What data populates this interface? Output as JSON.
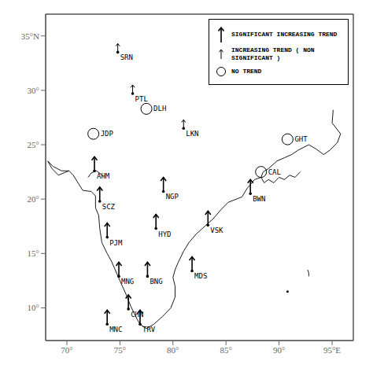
{
  "chart_data": {
    "type": "scatter",
    "xlim": [
      68,
      97
    ],
    "ylim": [
      7,
      37
    ],
    "xticks": [
      {
        "value": 70,
        "label": "70°"
      },
      {
        "value": 75,
        "label": "75°"
      },
      {
        "value": 80,
        "label": "80°"
      },
      {
        "value": 85,
        "label": "85°"
      },
      {
        "value": 90,
        "label": "90°"
      },
      {
        "value": 95,
        "label": "95°E"
      }
    ],
    "yticks": [
      {
        "value": 10,
        "label": "10°"
      },
      {
        "value": 15,
        "label": "15°"
      },
      {
        "value": 20,
        "label": "20°"
      },
      {
        "value": 25,
        "label": "25°"
      },
      {
        "value": 30,
        "label": "30°"
      },
      {
        "value": 35,
        "label": "35°N"
      }
    ],
    "grid": false,
    "legend": "upper right",
    "series": [
      {
        "type": "line",
        "color": "#000000",
        "marker": "none",
        "line_style": "solid",
        "x": [
          68.2,
          68.6,
          69.2,
          70.2,
          70.6,
          71.5,
          72.3,
          72.7,
          72.7,
          73.0,
          73.1,
          73.3,
          73.8,
          74.2,
          75.0,
          75.6,
          76.0,
          76.6,
          76.9,
          77.5,
          78.2,
          79.0,
          79.8,
          80.2,
          80.2,
          80.0,
          80.2,
          80.5,
          81.0,
          81.5,
          82.2,
          83.0,
          83.8,
          84.5,
          85.2,
          86.5,
          87.0,
          87.7,
          88.3,
          88.5,
          89.0,
          89.8,
          90.5,
          91.2,
          91.8,
          92.2,
          92.8,
          93.5,
          94.2,
          94.8,
          95.5,
          95.8,
          95.0,
          95.1
        ],
        "values": [
          23.5,
          22.8,
          22.2,
          22.6,
          22.2,
          20.8,
          20.7,
          20.3,
          19.2,
          18.5,
          17.3,
          16.0,
          15.0,
          14.3,
          12.5,
          11.2,
          10.2,
          9.0,
          8.5,
          8.1,
          8.5,
          9.2,
          10.0,
          11.0,
          12.0,
          12.8,
          13.5,
          14.2,
          15.2,
          16.0,
          16.8,
          17.5,
          18.2,
          19.0,
          19.7,
          20.2,
          21.0,
          21.8,
          22.0,
          22.5,
          22.8,
          23.5,
          23.8,
          24.1,
          24.5,
          24.7,
          25.0,
          24.6,
          24.1,
          24.5,
          25.2,
          26.0,
          27.0,
          28.2
        ]
      },
      {
        "type": "line",
        "color": "#000000",
        "marker": "none",
        "line_style": "solid",
        "x": [
          68.2,
          68.7,
          69.5,
          70.2
        ],
        "values": [
          23.5,
          23.0,
          22.6,
          22.6
        ]
      },
      {
        "type": "line",
        "color": "#000000",
        "marker": "none",
        "line_style": "solid",
        "x": [
          72.0,
          72.3,
          72.8,
          73.2,
          73.5
        ],
        "values": [
          22.0,
          22.4,
          22.6,
          22.3,
          22.0
        ]
      },
      {
        "type": "line",
        "color": "#000000",
        "marker": "none",
        "line_style": "solid",
        "x": [
          88.3,
          88.6,
          89.0,
          89.5,
          90.0,
          90.5,
          91.0,
          91.5,
          92.0
        ],
        "values": [
          22.0,
          21.5,
          21.8,
          21.5,
          22.0,
          21.8,
          22.2,
          22.0,
          22.5
        ]
      },
      {
        "type": "line",
        "color": "#000000",
        "marker": "none",
        "line_style": "solid",
        "x": [
          92.7,
          92.8,
          92.8
        ],
        "values": [
          13.5,
          13.2,
          12.9
        ]
      },
      {
        "type": "scatter",
        "color": "#000000",
        "marker": "dot",
        "line_style": "none",
        "x": [
          90.8
        ],
        "values": [
          11.5
        ]
      },
      {
        "type": "scatter",
        "name": "SIGNIFICANT INCREASING TREND",
        "color": "#000000",
        "marker": "arrow",
        "line_style": "none",
        "x": [
          72.6,
          79.1,
          87.3,
          73.1,
          78.4,
          83.3,
          73.8,
          74.9,
          77.6,
          81.8,
          75.8,
          76.9,
          73.8
        ],
        "values": [
          22.6,
          20.7,
          20.5,
          19.8,
          17.3,
          17.6,
          16.5,
          12.9,
          12.9,
          13.4,
          9.9,
          8.5,
          8.5
        ],
        "labels": [
          "AHM",
          "NGP",
          "BWN",
          "SCZ",
          "HYD",
          "VSK",
          "PJM",
          "MNG",
          "BNG",
          "MDS",
          "CHN",
          "TRV",
          "MNC"
        ]
      },
      {
        "type": "scatter",
        "name": "INCREASING TREND ( NON SIGNIFICANT )",
        "color": "#000000",
        "marker": "small_arrow",
        "line_style": "none",
        "x": [
          74.8,
          76.2,
          81.0
        ],
        "values": [
          33.5,
          29.7,
          26.5
        ],
        "labels": [
          "SRN",
          "PTL",
          "LKN"
        ]
      },
      {
        "type": "scatter",
        "name": "NO TREND",
        "color": "#000000",
        "marker": "circle",
        "line_style": "none",
        "x": [
          77.5,
          72.5,
          90.8,
          88.3
        ],
        "values": [
          28.3,
          26.0,
          25.5,
          22.5
        ],
        "labels": [
          "DLH",
          "JDP",
          "GHT",
          "CAL"
        ]
      }
    ]
  }
}
